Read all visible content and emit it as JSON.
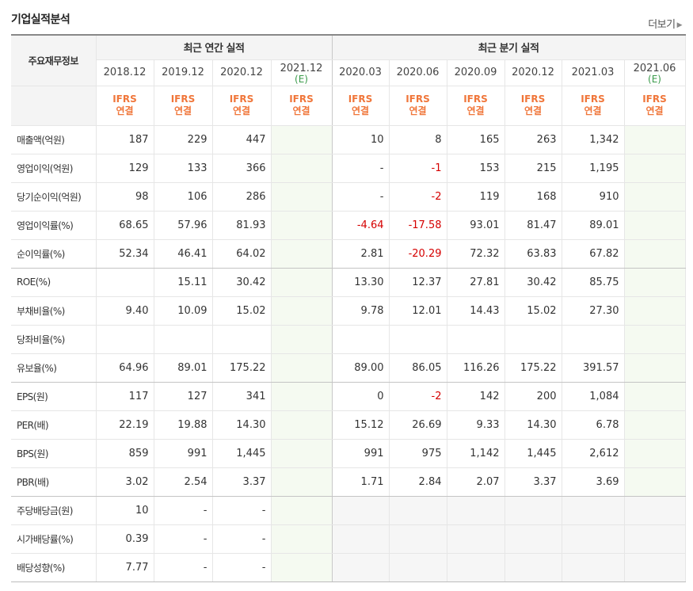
{
  "page": {
    "title": "기업실적분석",
    "more_label": "더보기"
  },
  "table": {
    "row_header": "주요재무정보",
    "groups": {
      "annual": "최근 연간 실적",
      "quarterly": "최근 분기 실적"
    },
    "periods": [
      {
        "label": "2018.12",
        "est": ""
      },
      {
        "label": "2019.12",
        "est": ""
      },
      {
        "label": "2020.12",
        "est": ""
      },
      {
        "label": "2021.12",
        "est": "(E)"
      },
      {
        "label": "2020.03",
        "est": ""
      },
      {
        "label": "2020.06",
        "est": ""
      },
      {
        "label": "2020.09",
        "est": ""
      },
      {
        "label": "2020.12",
        "est": ""
      },
      {
        "label": "2021.03",
        "est": ""
      },
      {
        "label": "2021.06",
        "est": "(E)"
      }
    ],
    "ifrs": {
      "top": "IFRS",
      "bottom": "연결"
    },
    "rows": [
      {
        "label": "매출액(억원)",
        "values": [
          "187",
          "229",
          "447",
          "",
          "10",
          "8",
          "165",
          "263",
          "1,342",
          ""
        ]
      },
      {
        "label": "영업이익(억원)",
        "values": [
          "129",
          "133",
          "366",
          "",
          "-",
          "-1",
          "153",
          "215",
          "1,195",
          ""
        ]
      },
      {
        "label": "당기순이익(억원)",
        "values": [
          "98",
          "106",
          "286",
          "",
          "-",
          "-2",
          "119",
          "168",
          "910",
          ""
        ]
      },
      {
        "label": "영업이익률(%)",
        "values": [
          "68.65",
          "57.96",
          "81.93",
          "",
          "-4.64",
          "-17.58",
          "93.01",
          "81.47",
          "89.01",
          ""
        ]
      },
      {
        "label": "순이익률(%)",
        "values": [
          "52.34",
          "46.41",
          "64.02",
          "",
          "2.81",
          "-20.29",
          "72.32",
          "63.83",
          "67.82",
          ""
        ]
      },
      {
        "label": "ROE(%)",
        "values": [
          "",
          "15.11",
          "30.42",
          "",
          "13.30",
          "12.37",
          "27.81",
          "30.42",
          "85.75",
          ""
        ]
      },
      {
        "label": "부채비율(%)",
        "values": [
          "9.40",
          "10.09",
          "15.02",
          "",
          "9.78",
          "12.01",
          "14.43",
          "15.02",
          "27.30",
          ""
        ]
      },
      {
        "label": "당좌비율(%)",
        "values": [
          "",
          "",
          "",
          "",
          "",
          "",
          "",
          "",
          "",
          ""
        ]
      },
      {
        "label": "유보율(%)",
        "values": [
          "64.96",
          "89.01",
          "175.22",
          "",
          "89.00",
          "86.05",
          "116.26",
          "175.22",
          "391.57",
          ""
        ]
      },
      {
        "label": "EPS(원)",
        "values": [
          "117",
          "127",
          "341",
          "",
          "0",
          "-2",
          "142",
          "200",
          "1,084",
          ""
        ]
      },
      {
        "label": "PER(배)",
        "values": [
          "22.19",
          "19.88",
          "14.30",
          "",
          "15.12",
          "26.69",
          "9.33",
          "14.30",
          "6.78",
          ""
        ]
      },
      {
        "label": "BPS(원)",
        "values": [
          "859",
          "991",
          "1,445",
          "",
          "991",
          "975",
          "1,142",
          "1,445",
          "2,612",
          ""
        ]
      },
      {
        "label": "PBR(배)",
        "values": [
          "3.02",
          "2.54",
          "3.37",
          "",
          "1.71",
          "2.84",
          "2.07",
          "3.37",
          "3.69",
          ""
        ]
      },
      {
        "label": "주당배당금(원)",
        "values": [
          "10",
          "-",
          "-",
          "",
          "",
          "",
          "",
          "",
          "",
          ""
        ]
      },
      {
        "label": "시가배당률(%)",
        "values": [
          "0.39",
          "-",
          "-",
          "",
          "",
          "",
          "",
          "",
          "",
          ""
        ]
      },
      {
        "label": "배당성향(%)",
        "values": [
          "7.77",
          "-",
          "-",
          "",
          "",
          "",
          "",
          "",
          "",
          ""
        ]
      }
    ]
  },
  "colors": {
    "negative": "#d50000",
    "ifrs": "#f0763a",
    "estimate_text": "#3a9a4a",
    "estimate_bg": "#f5faf1",
    "empty_bg": "#f6f6f6"
  }
}
